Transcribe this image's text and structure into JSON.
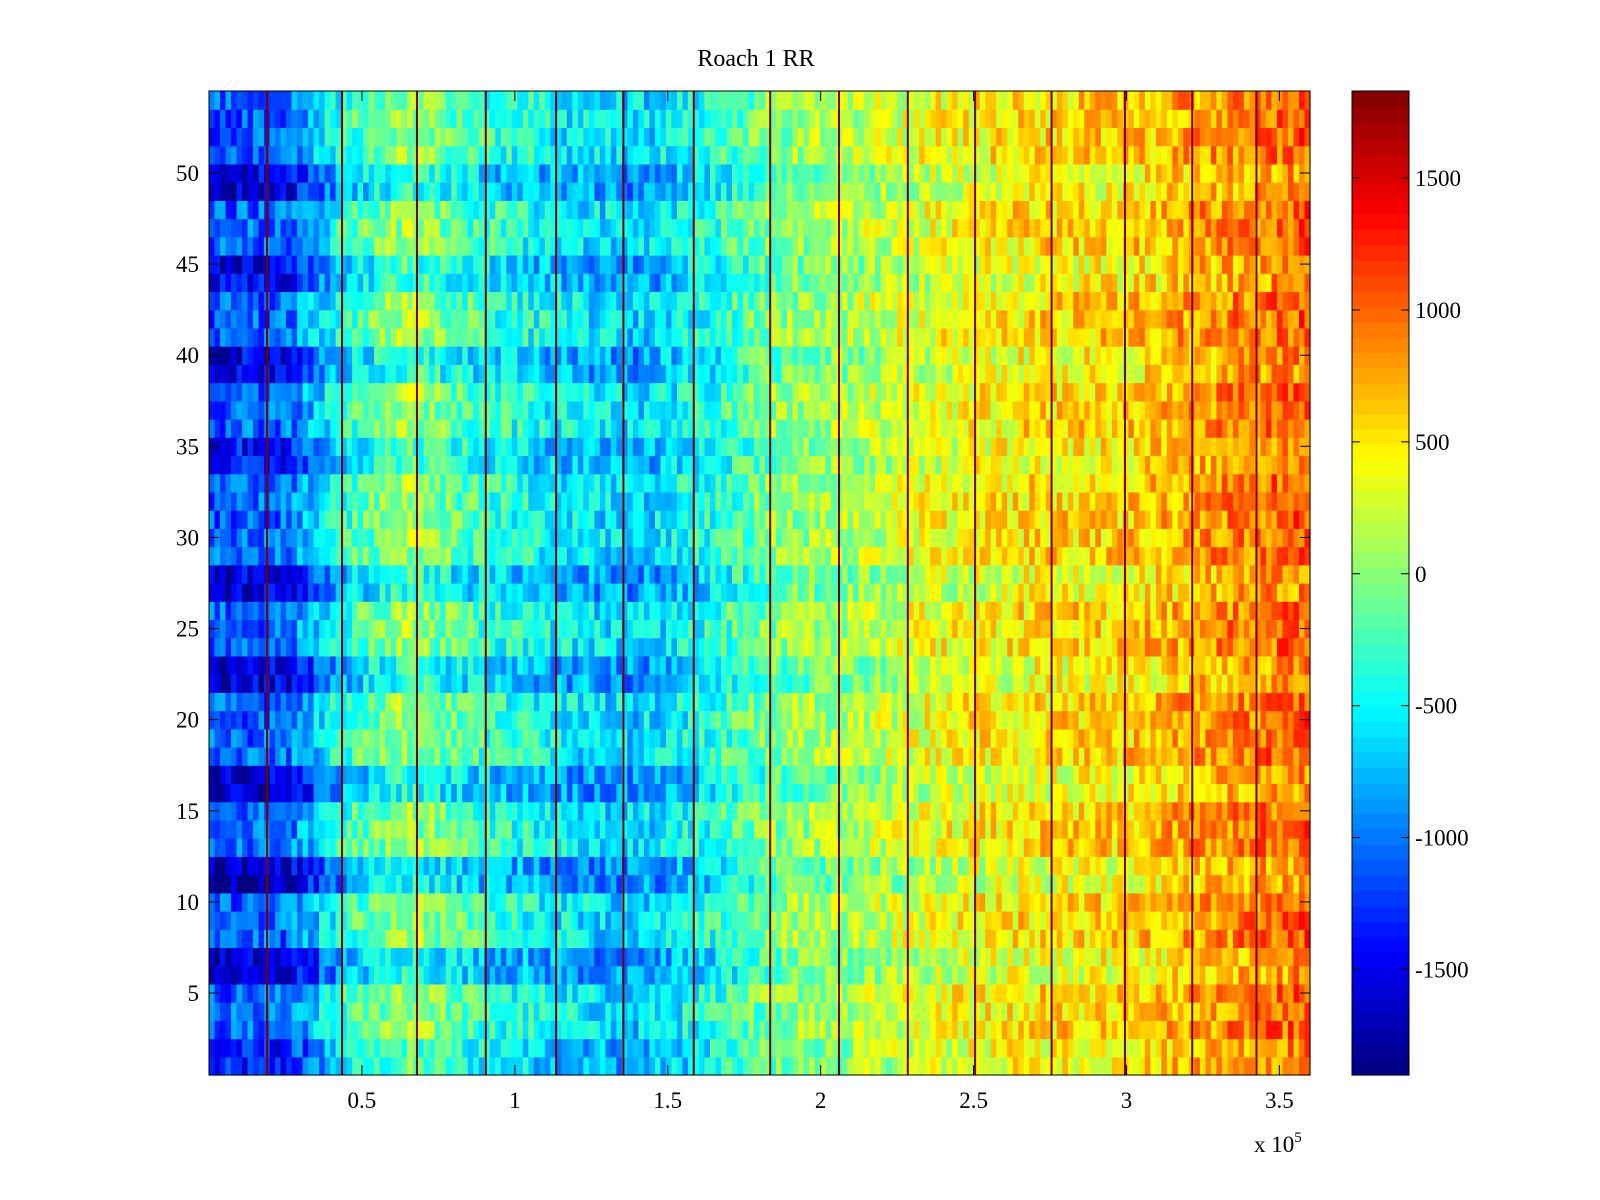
{
  "chart_data": {
    "type": "heatmap",
    "title": "Roach 1 RR",
    "xlabel": "",
    "ylabel": "",
    "x_exponent_label": "x 10",
    "x_exponent_power": "5",
    "xlim": [
      0,
      3.6
    ],
    "ylim": [
      0.5,
      54.5
    ],
    "x_ticks": [
      0.5,
      1,
      1.5,
      2,
      2.5,
      3,
      3.5
    ],
    "x_tick_labels": [
      "0.5",
      "1",
      "1.5",
      "2",
      "2.5",
      "3",
      "3.5"
    ],
    "y_ticks": [
      5,
      10,
      15,
      20,
      25,
      30,
      35,
      40,
      45,
      50
    ],
    "y_tick_labels": [
      "5",
      "10",
      "15",
      "20",
      "25",
      "30",
      "35",
      "40",
      "45",
      "50"
    ],
    "rows": 54,
    "colormap": "jet",
    "clim": [
      -1900,
      1830
    ],
    "colorbar": {
      "ticks": [
        -1500,
        -1000,
        -500,
        0,
        500,
        1000,
        1500
      ],
      "tick_labels": [
        "-1500",
        "-1000",
        "-500",
        "0",
        "500",
        "1000",
        "1500"
      ]
    },
    "trend_profile": [
      {
        "x": 0.0,
        "value": -1100
      },
      {
        "x": 0.25,
        "value": -1050
      },
      {
        "x": 0.45,
        "value": -300
      },
      {
        "x": 0.65,
        "value": 100
      },
      {
        "x": 0.9,
        "value": -300
      },
      {
        "x": 1.15,
        "value": -500
      },
      {
        "x": 1.4,
        "value": -650
      },
      {
        "x": 1.65,
        "value": -350
      },
      {
        "x": 1.85,
        "value": 0
      },
      {
        "x": 2.1,
        "value": 150
      },
      {
        "x": 2.4,
        "value": 400
      },
      {
        "x": 2.7,
        "value": 550
      },
      {
        "x": 3.0,
        "value": 600
      },
      {
        "x": 3.3,
        "value": 850
      },
      {
        "x": 3.6,
        "value": 1050
      }
    ],
    "dark_row_bands": [
      {
        "from": 0.5,
        "to": 2.5,
        "strength": 0.5
      },
      {
        "from": 5.5,
        "to": 7.5,
        "strength": 0.9
      },
      {
        "from": 10.5,
        "to": 12.5,
        "strength": 1.0
      },
      {
        "from": 15.5,
        "to": 17.5,
        "strength": 0.9
      },
      {
        "from": 21.5,
        "to": 23.5,
        "strength": 0.8
      },
      {
        "from": 26.5,
        "to": 28.5,
        "strength": 0.8
      },
      {
        "from": 33.5,
        "to": 35.5,
        "strength": 0.5
      },
      {
        "from": 38.5,
        "to": 40.5,
        "strength": 0.7
      },
      {
        "from": 43.5,
        "to": 45.5,
        "strength": 0.7
      },
      {
        "from": 48.5,
        "to": 50.5,
        "strength": 0.8
      }
    ],
    "vertical_stripes": [
      0.19,
      0.435,
      0.68,
      0.905,
      1.135,
      1.355,
      1.585,
      1.835,
      2.06,
      2.285,
      2.505,
      2.755,
      2.995,
      3.215,
      3.425
    ]
  }
}
